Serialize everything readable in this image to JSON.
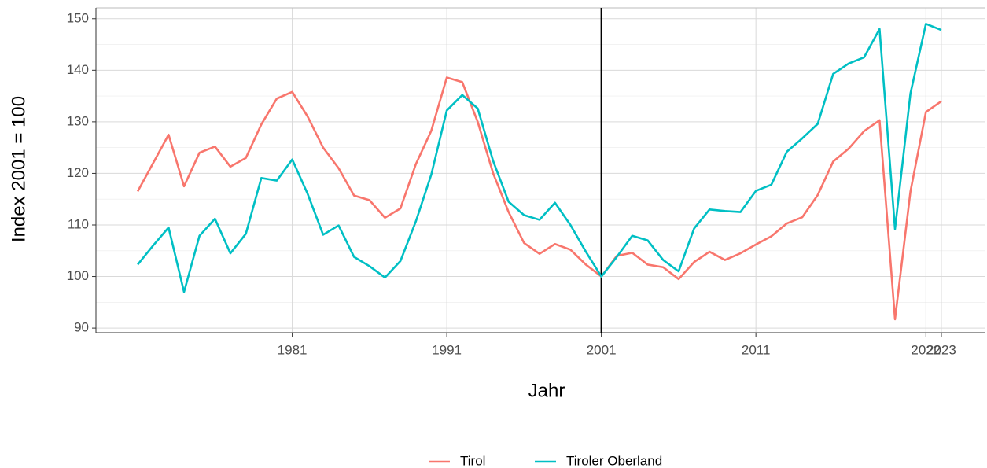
{
  "chart_data": {
    "type": "line",
    "x_label": "Jahr",
    "y_label": "Index 2001 = 100",
    "x": [
      1971,
      1972,
      1973,
      1974,
      1975,
      1976,
      1977,
      1978,
      1979,
      1980,
      1981,
      1982,
      1983,
      1984,
      1985,
      1986,
      1987,
      1988,
      1989,
      1990,
      1991,
      1992,
      1993,
      1994,
      1995,
      1996,
      1997,
      1998,
      1999,
      2000,
      2001,
      2002,
      2003,
      2004,
      2005,
      2006,
      2007,
      2008,
      2009,
      2010,
      2011,
      2012,
      2013,
      2014,
      2015,
      2016,
      2017,
      2018,
      2019,
      2020,
      2021,
      2022,
      2023
    ],
    "series": [
      {
        "name": "Tirol",
        "color": "#F8766D",
        "values": [
          116.5,
          122,
          127.5,
          117.5,
          124,
          125.2,
          121.3,
          123,
          129.5,
          134.5,
          135.8,
          131,
          125,
          121,
          115.7,
          114.8,
          111.4,
          113.2,
          121.8,
          128.3,
          138.6,
          137.7,
          130,
          120,
          112.5,
          106.5,
          104.4,
          106.3,
          105.2,
          102.3,
          100,
          104,
          104.6,
          102.3,
          101.8,
          99.5,
          102.8,
          104.8,
          103.2,
          104.5,
          106.2,
          107.8,
          110.3,
          111.5,
          115.8,
          122.3,
          124.8,
          128.2,
          130.3,
          91.7,
          116.5,
          131.9,
          134
        ]
      },
      {
        "name": "Tiroler Oberland",
        "color": "#00BFC4",
        "values": [
          102.3,
          106,
          109.5,
          97,
          107.9,
          111.2,
          104.5,
          108.3,
          119.1,
          118.6,
          122.7,
          116,
          108.1,
          109.9,
          103.8,
          102,
          99.8,
          103,
          110.7,
          119.8,
          132.2,
          135.2,
          132.6,
          122.4,
          114.5,
          111.9,
          111,
          114.3,
          110,
          104.8,
          100,
          103.8,
          107.9,
          107,
          103.2,
          101,
          109.3,
          113,
          112.7,
          112.5,
          116.6,
          117.8,
          124.2,
          126.8,
          129.6,
          139.3,
          141.3,
          142.5,
          148,
          109.2,
          135.5,
          149,
          147.8
        ]
      }
    ],
    "xlim": [
      1968.3,
      2025.8
    ],
    "xticks": [
      1981,
      1991,
      2001,
      2011,
      2022,
      2023
    ],
    "ylim": [
      89.1,
      152.1
    ],
    "yticks": [
      90,
      100,
      110,
      120,
      130,
      140,
      150
    ],
    "vline_x": 2001,
    "grid": true,
    "legend": "bottom"
  }
}
